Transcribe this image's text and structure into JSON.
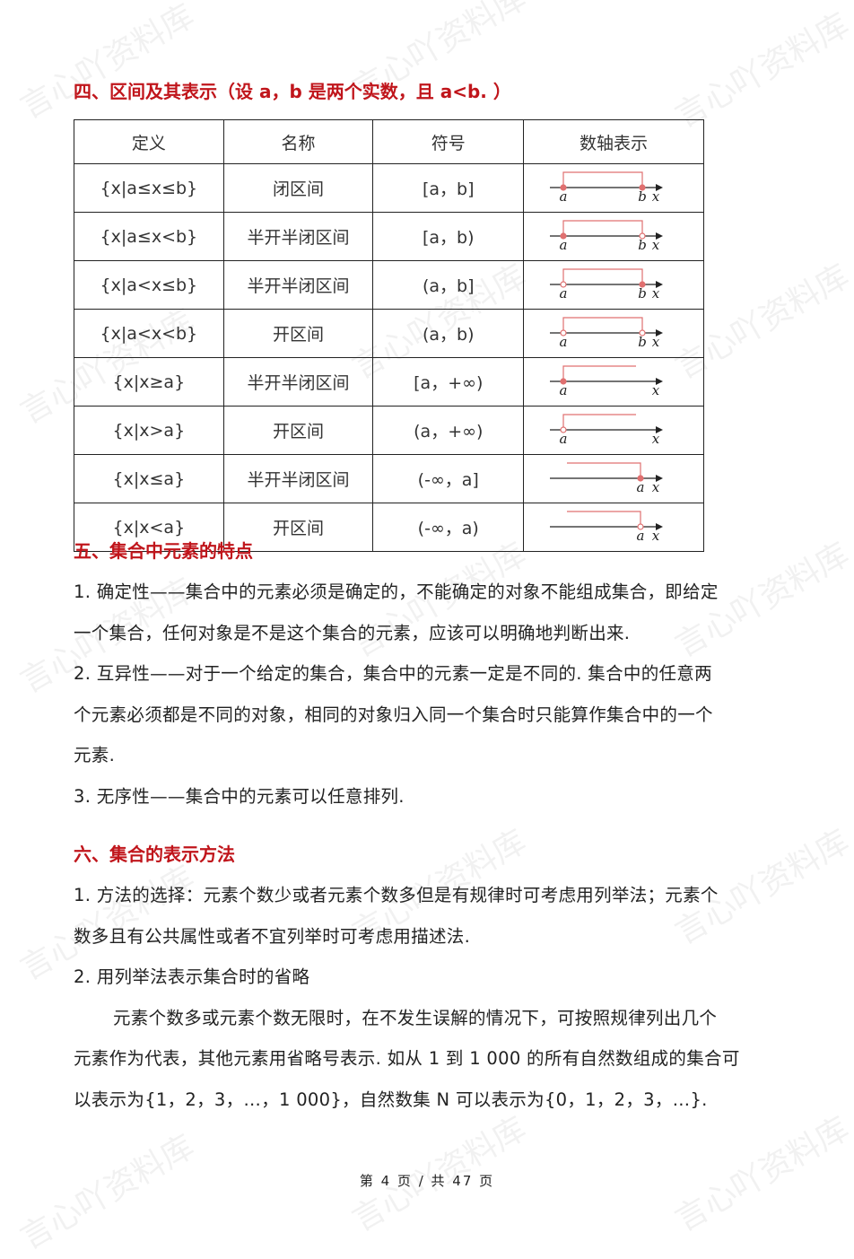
{
  "watermark": "言心吖资料库",
  "section4": {
    "heading": "四、区间及其表示（设 a，b 是两个实数，且 a<b. ）",
    "headers": [
      "定义",
      "名称",
      "符号",
      "数轴表示"
    ],
    "rows": [
      {
        "def": "{x|a≤x≤b}",
        "name": "闭区间",
        "symbol": "[a，b]",
        "left": "closed",
        "right": "closed",
        "labels": [
          "a",
          "b",
          "x"
        ]
      },
      {
        "def": "{x|a≤x<b}",
        "name": "半开半闭区间",
        "symbol": "[a，b)",
        "left": "closed",
        "right": "open",
        "labels": [
          "a",
          "b",
          "x"
        ]
      },
      {
        "def": "{x|a<x≤b}",
        "name": "半开半闭区间",
        "symbol": "(a，b]",
        "left": "open",
        "right": "closed",
        "labels": [
          "a",
          "b",
          "x"
        ]
      },
      {
        "def": "{x|a<x<b}",
        "name": "开区间",
        "symbol": "(a，b)",
        "left": "open",
        "right": "open",
        "labels": [
          "a",
          "b",
          "x"
        ]
      },
      {
        "def": "{x|x≥a}",
        "name": "半开半闭区间",
        "symbol": "[a，+∞)",
        "left": "closed",
        "right": "inf",
        "labels": [
          "a",
          "x"
        ]
      },
      {
        "def": "{x|x>a}",
        "name": "开区间",
        "symbol": "(a，+∞)",
        "left": "open",
        "right": "inf",
        "labels": [
          "a",
          "x"
        ]
      },
      {
        "def": "{x|x≤a}",
        "name": "半开半闭区间",
        "symbol": "(-∞，a]",
        "left": "inf",
        "right": "closed",
        "labels": [
          "a",
          "x"
        ]
      },
      {
        "def": "{x|x<a}",
        "name": "开区间",
        "symbol": "(-∞，a)",
        "left": "inf",
        "right": "open",
        "labels": [
          "a",
          "x"
        ]
      }
    ]
  },
  "colors": {
    "heading": "#c0151b",
    "interval": "#e07070",
    "axis": "#222222"
  },
  "section5": {
    "heading": "五、集合中元素的特点",
    "lines": [
      "1. 确定性——集合中的元素必须是确定的，不能确定的对象不能组成集合，即给定",
      "一个集合，任何对象是不是这个集合的元素，应该可以明确地判断出来.",
      "2. 互异性——对于一个给定的集合，集合中的元素一定是不同的. 集合中的任意两",
      "个元素必须都是不同的对象，相同的对象归入同一个集合时只能算作集合中的一个",
      "元素.",
      "3. 无序性——集合中的元素可以任意排列."
    ]
  },
  "section6": {
    "heading": "六、集合的表示方法",
    "lines": [
      "1. 方法的选择：元素个数少或者元素个数多但是有规律时可考虑用列举法；元素个",
      "数多且有公共属性或者不宜列举时可考虑用描述法.",
      "2. 用列举法表示集合时的省略",
      "元素个数多或元素个数无限时，在不发生误解的情况下，可按照规律列出几个",
      "元素作为代表，其他元素用省略号表示. 如从 1 到 1 000 的所有自然数组成的集合可",
      "以表示为{1，2，3，…，1 000}，自然数集 N 可以表示为{0，1，2，3，…}."
    ]
  },
  "footer": "第 4 页 / 共 47 页"
}
